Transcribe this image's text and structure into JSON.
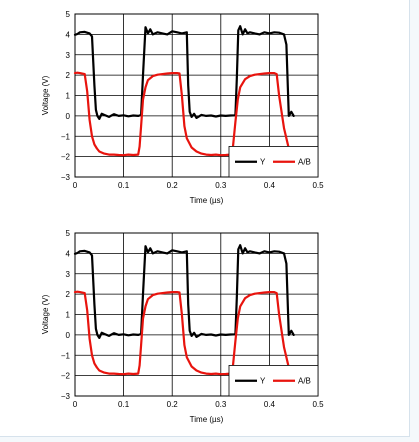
{
  "colors": {
    "series_y": "#000000",
    "series_ab": "#e8140e",
    "grid": "#000000",
    "page_background": "#f4f8fb",
    "panel_background": "#ffffff"
  },
  "chart_data": [
    {
      "type": "line",
      "title": "",
      "xlabel": "Time (µs)",
      "ylabel": "Voltage (V)",
      "xlim": [
        0,
        0.5
      ],
      "ylim": [
        -3,
        5
      ],
      "xticks": [
        0,
        0.1,
        0.2,
        0.3,
        0.4,
        0.5
      ],
      "xtick_labels": [
        "0",
        "0.1",
        "0.2",
        "0.3",
        "0.4",
        "0.5"
      ],
      "yticks": [
        -3,
        -2,
        -1,
        0,
        1,
        2,
        3,
        4,
        5
      ],
      "ytick_labels": [
        "−3",
        "−2",
        "−1",
        "0",
        "1",
        "2",
        "3",
        "4",
        "5"
      ],
      "grid": true,
      "legend": {
        "placement": "bottom-right",
        "entries": [
          "Y",
          "A/B"
        ]
      },
      "series": [
        {
          "name": "Y",
          "color": "#000000",
          "x": [
            0,
            0.005,
            0.01,
            0.02,
            0.03,
            0.035,
            0.04,
            0.043,
            0.046,
            0.05,
            0.055,
            0.06,
            0.07,
            0.08,
            0.09,
            0.1,
            0.11,
            0.12,
            0.13,
            0.133,
            0.136,
            0.14,
            0.145,
            0.15,
            0.155,
            0.16,
            0.17,
            0.18,
            0.19,
            0.2,
            0.21,
            0.22,
            0.23,
            0.233,
            0.236,
            0.24,
            0.245,
            0.25,
            0.26,
            0.27,
            0.28,
            0.29,
            0.3,
            0.31,
            0.32,
            0.33,
            0.333,
            0.336,
            0.34,
            0.345,
            0.35,
            0.355,
            0.36,
            0.37,
            0.38,
            0.39,
            0.4,
            0.41,
            0.42,
            0.43,
            0.435,
            0.44,
            0.445,
            0.45
          ],
          "y": [
            3.98,
            4.02,
            4.1,
            4.12,
            4.05,
            3.9,
            1.5,
            0.3,
            0.0,
            -0.15,
            0.1,
            0.05,
            -0.05,
            0.08,
            0.0,
            0.03,
            -0.02,
            0.02,
            0.0,
            0.02,
            0.05,
            2.0,
            4.35,
            4.05,
            4.25,
            4.0,
            4.1,
            4.05,
            4.0,
            4.15,
            4.1,
            4.05,
            4.1,
            1.5,
            0.2,
            -0.05,
            0.1,
            -0.1,
            0.05,
            0.0,
            0.02,
            -0.03,
            0.02,
            0.0,
            0.02,
            0.03,
            1.8,
            4.2,
            4.4,
            4.0,
            4.25,
            4.05,
            4.1,
            4.05,
            4.0,
            4.1,
            4.05,
            4.1,
            4.08,
            4.0,
            3.5,
            0.0,
            0.2,
            0.0
          ]
        },
        {
          "name": "A/B",
          "color": "#e8140e",
          "x": [
            0,
            0.005,
            0.01,
            0.02,
            0.025,
            0.03,
            0.035,
            0.04,
            0.045,
            0.05,
            0.06,
            0.07,
            0.08,
            0.09,
            0.1,
            0.11,
            0.12,
            0.13,
            0.133,
            0.136,
            0.14,
            0.145,
            0.15,
            0.16,
            0.17,
            0.18,
            0.19,
            0.2,
            0.21,
            0.215,
            0.22,
            0.225,
            0.23,
            0.24,
            0.25,
            0.26,
            0.27,
            0.28,
            0.29,
            0.3,
            0.31,
            0.32,
            0.325,
            0.33,
            0.335,
            0.34,
            0.35,
            0.36,
            0.37,
            0.38,
            0.39,
            0.4,
            0.41,
            0.415,
            0.42,
            0.43,
            0.44
          ],
          "y": [
            2.1,
            2.12,
            2.1,
            2.05,
            1.2,
            -0.2,
            -1.0,
            -1.4,
            -1.6,
            -1.75,
            -1.85,
            -1.9,
            -1.9,
            -1.92,
            -1.93,
            -1.9,
            -1.92,
            -1.9,
            -1.5,
            -0.5,
            0.8,
            1.4,
            1.75,
            1.95,
            2.02,
            2.05,
            2.08,
            2.1,
            2.1,
            2.08,
            1.0,
            -0.5,
            -1.1,
            -1.55,
            -1.75,
            -1.85,
            -1.9,
            -1.92,
            -1.9,
            -1.93,
            -1.92,
            -1.9,
            -1.5,
            -0.3,
            0.8,
            1.4,
            1.8,
            1.95,
            2.02,
            2.05,
            2.08,
            2.1,
            2.1,
            2.05,
            1.0,
            -0.6,
            -1.6
          ]
        }
      ]
    },
    {
      "type": "line",
      "title": "",
      "xlabel": "Time (µs)",
      "ylabel": "Voltage (V)",
      "xlim": [
        0,
        0.5
      ],
      "ylim": [
        -3,
        5
      ],
      "xticks": [
        0,
        0.1,
        0.2,
        0.3,
        0.4,
        0.5
      ],
      "xtick_labels": [
        "0",
        "0.1",
        "0.2",
        "0.3",
        "0.4",
        "0.5"
      ],
      "yticks": [
        -3,
        -2,
        -1,
        0,
        1,
        2,
        3,
        4,
        5
      ],
      "ytick_labels": [
        "−3",
        "−2",
        "−1",
        "0",
        "1",
        "2",
        "3",
        "4",
        "5"
      ],
      "grid": true,
      "legend": {
        "placement": "bottom-right",
        "entries": [
          "Y",
          "A/B"
        ]
      },
      "series": [
        {
          "name": "Y",
          "color": "#000000",
          "x": [
            0,
            0.005,
            0.01,
            0.02,
            0.03,
            0.035,
            0.04,
            0.043,
            0.046,
            0.05,
            0.055,
            0.06,
            0.07,
            0.08,
            0.09,
            0.1,
            0.11,
            0.12,
            0.13,
            0.133,
            0.136,
            0.14,
            0.145,
            0.15,
            0.155,
            0.16,
            0.17,
            0.18,
            0.19,
            0.2,
            0.21,
            0.22,
            0.23,
            0.233,
            0.236,
            0.24,
            0.245,
            0.25,
            0.26,
            0.27,
            0.28,
            0.29,
            0.3,
            0.31,
            0.32,
            0.33,
            0.333,
            0.336,
            0.34,
            0.345,
            0.35,
            0.355,
            0.36,
            0.37,
            0.38,
            0.39,
            0.4,
            0.41,
            0.42,
            0.43,
            0.435,
            0.44,
            0.445,
            0.45
          ],
          "y": [
            3.98,
            4.02,
            4.1,
            4.12,
            4.05,
            3.9,
            1.5,
            0.3,
            0.0,
            -0.15,
            0.1,
            0.05,
            -0.05,
            0.08,
            0.0,
            0.03,
            -0.02,
            0.02,
            0.0,
            0.02,
            0.05,
            2.0,
            4.35,
            4.05,
            4.25,
            4.0,
            4.1,
            4.05,
            4.0,
            4.15,
            4.1,
            4.05,
            4.1,
            1.5,
            0.2,
            -0.05,
            0.1,
            -0.1,
            0.05,
            0.0,
            0.02,
            -0.03,
            0.02,
            0.0,
            0.02,
            0.03,
            1.8,
            4.2,
            4.4,
            4.0,
            4.25,
            4.05,
            4.1,
            4.05,
            4.0,
            4.1,
            4.05,
            4.1,
            4.08,
            4.0,
            3.5,
            0.0,
            0.2,
            0.0
          ]
        },
        {
          "name": "A/B",
          "color": "#e8140e",
          "x": [
            0,
            0.005,
            0.01,
            0.02,
            0.025,
            0.03,
            0.035,
            0.04,
            0.045,
            0.05,
            0.06,
            0.07,
            0.08,
            0.09,
            0.1,
            0.11,
            0.12,
            0.13,
            0.133,
            0.136,
            0.14,
            0.145,
            0.15,
            0.16,
            0.17,
            0.18,
            0.19,
            0.2,
            0.21,
            0.215,
            0.22,
            0.225,
            0.23,
            0.24,
            0.25,
            0.26,
            0.27,
            0.28,
            0.29,
            0.3,
            0.31,
            0.32,
            0.325,
            0.33,
            0.335,
            0.34,
            0.35,
            0.36,
            0.37,
            0.38,
            0.39,
            0.4,
            0.41,
            0.415,
            0.42,
            0.43,
            0.44
          ],
          "y": [
            2.1,
            2.12,
            2.1,
            2.05,
            1.2,
            -0.2,
            -1.0,
            -1.4,
            -1.6,
            -1.75,
            -1.85,
            -1.9,
            -1.9,
            -1.92,
            -1.93,
            -1.9,
            -1.92,
            -1.9,
            -1.5,
            -0.5,
            0.8,
            1.4,
            1.75,
            1.95,
            2.02,
            2.05,
            2.08,
            2.1,
            2.1,
            2.08,
            1.0,
            -0.5,
            -1.1,
            -1.55,
            -1.75,
            -1.85,
            -1.9,
            -1.92,
            -1.9,
            -1.93,
            -1.92,
            -1.9,
            -1.5,
            -0.3,
            0.8,
            1.4,
            1.8,
            1.95,
            2.02,
            2.05,
            2.08,
            2.1,
            2.1,
            2.05,
            1.0,
            -0.6,
            -1.6
          ]
        }
      ]
    }
  ]
}
